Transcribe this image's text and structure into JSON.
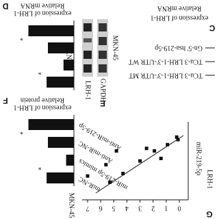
{
  "panels": {
    "D": {
      "letter": "D",
      "axis_label": [
        "Relative mRNA",
        "expression of LRH-1"
      ],
      "cell_line": "MKN-45",
      "values": [
        1.75,
        1.0,
        0.4,
        1.05
      ],
      "significance": [
        "*",
        "*"
      ]
    },
    "E": {
      "letter": "E",
      "bands": [
        "LRH-1",
        "GAPDH"
      ],
      "cell_line": "MKN-45"
    },
    "F": {
      "letter": "F",
      "axis_label": [
        "Relative protein",
        "expression of LRH-1"
      ],
      "cell_line": "MKN-45",
      "categories": [
        "Anti-miR-219-5p",
        "Anti-miR-NC",
        "miR-219-5p mimics",
        "miR-NC"
      ],
      "values": [
        1.75,
        1.0,
        0.3,
        1.05
      ],
      "significance": [
        "*",
        "*"
      ]
    },
    "C": {
      "letter": "C",
      "axis_label": [
        "Relative mRNA",
        "expression of LRH-1"
      ],
      "legend": [
        "Gn-5' hsa-219-5p",
        "TCu-3 LRH-1-3'-UTR WT",
        "TCu-3 LRH-1-3'-UTR MT"
      ]
    },
    "G": {
      "letter": "G",
      "x_label": "LRH-1",
      "y_label": "miR-219-5p",
      "xlim": [
        0,
        7
      ],
      "xticks": [
        0,
        1,
        2,
        3,
        4,
        5,
        6,
        7
      ],
      "ylim": [
        0,
        0.6
      ],
      "x": [
        7.0,
        5.6,
        5.3,
        4.3,
        4.8,
        3.0,
        2.5,
        1.9,
        1.4,
        0.9,
        0.2,
        0.1
      ],
      "y": [
        0.19,
        0.28,
        0.14,
        0.21,
        0.39,
        0.31,
        0.41,
        0.39,
        0.33,
        0.44,
        0.5,
        0.48
      ]
    }
  }
}
